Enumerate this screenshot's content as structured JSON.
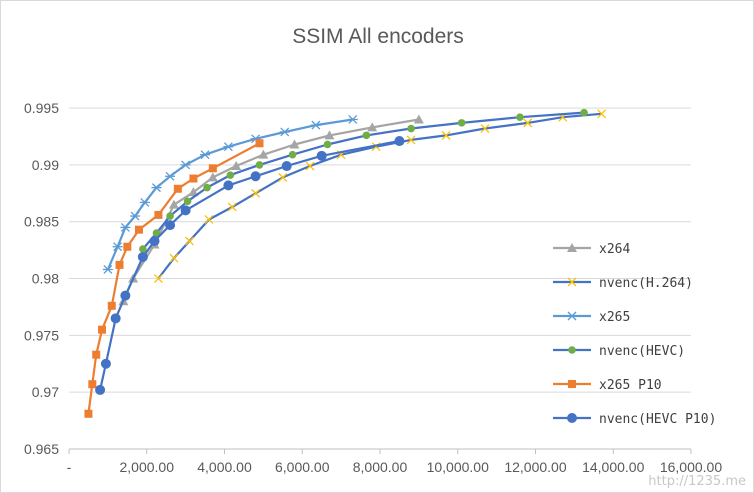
{
  "chart_data": {
    "type": "line",
    "title": "SSIM All encoders",
    "xlabel": "",
    "ylabel": "",
    "xlim": [
      0,
      16000
    ],
    "ylim": [
      0.965,
      0.998
    ],
    "xticks": [
      0,
      2000,
      4000,
      6000,
      8000,
      10000,
      12000,
      14000,
      16000
    ],
    "xtick_labels": [
      "-",
      "2,000.00",
      "4,000.00",
      "6,000.00",
      "8,000.00",
      "10,000.00",
      "12,000.00",
      "14,000.00",
      "16,000.00"
    ],
    "yticks": [
      0.965,
      0.97,
      0.975,
      0.98,
      0.985,
      0.99,
      0.995
    ],
    "ytick_labels": [
      "0.965",
      "0.97",
      "0.975",
      "0.98",
      "0.985",
      "0.99",
      "0.995"
    ],
    "grid": "horizontal",
    "legend_position": "right",
    "series": [
      {
        "name": "x264",
        "color": "#a5a5a5",
        "line_color": "#a5a5a5",
        "marker": "triangle",
        "x": [
          1400,
          1650,
          2200,
          2700,
          3200,
          3700,
          4300,
          5000,
          5800,
          6700,
          7800,
          9000
        ],
        "y": [
          0.978,
          0.98,
          0.983,
          0.9865,
          0.9876,
          0.9889,
          0.9899,
          0.9909,
          0.9918,
          0.9926,
          0.9933,
          0.994
        ]
      },
      {
        "name": "nvenc(H.264)",
        "color": "#ffc000",
        "line_color": "#4472c4",
        "marker": "x",
        "x": [
          2300,
          2700,
          3100,
          3600,
          4200,
          4800,
          5500,
          6200,
          7000,
          7900,
          8800,
          9700,
          10700,
          11800,
          12700,
          13700
        ],
        "y": [
          0.98,
          0.9818,
          0.9833,
          0.9852,
          0.9863,
          0.9875,
          0.9889,
          0.9899,
          0.9909,
          0.9916,
          0.9922,
          0.9926,
          0.9932,
          0.9937,
          0.9942,
          0.9945
        ]
      },
      {
        "name": "x265",
        "color": "#5b9bd5",
        "line_color": "#5b9bd5",
        "marker": "asterisk",
        "x": [
          1000,
          1250,
          1450,
          1700,
          1950,
          2250,
          2600,
          3000,
          3500,
          4100,
          4800,
          5550,
          6350,
          7300
        ],
        "y": [
          0.9808,
          0.9828,
          0.9845,
          0.9855,
          0.9867,
          0.988,
          0.989,
          0.99,
          0.9909,
          0.9916,
          0.9923,
          0.9929,
          0.9935,
          0.994
        ]
      },
      {
        "name": "nvenc(HEVC)",
        "color": "#70ad47",
        "line_color": "#4472c4",
        "marker": "circle-small",
        "x": [
          1900,
          2250,
          2600,
          3050,
          3550,
          4150,
          4900,
          5750,
          6650,
          7650,
          8800,
          10100,
          11600,
          13250
        ],
        "y": [
          0.9826,
          0.984,
          0.9855,
          0.9868,
          0.988,
          0.9891,
          0.99,
          0.9909,
          0.9918,
          0.9926,
          0.9932,
          0.9937,
          0.9942,
          0.9946
        ]
      },
      {
        "name": "x265 P10",
        "color": "#ed7d31",
        "line_color": "#ed7d31",
        "marker": "square",
        "x": [
          500,
          600,
          700,
          850,
          1100,
          1300,
          1500,
          1800,
          2300,
          2800,
          3200,
          3700,
          4900
        ],
        "y": [
          0.9681,
          0.9707,
          0.9733,
          0.9755,
          0.9776,
          0.9812,
          0.9828,
          0.9843,
          0.9856,
          0.9879,
          0.9888,
          0.9897,
          0.9919
        ]
      },
      {
        "name": "nvenc(HEVC P10)",
        "color": "#4472c4",
        "line_color": "#4472c4",
        "marker": "circle-large",
        "x": [
          800,
          950,
          1200,
          1450,
          1900,
          2200,
          2600,
          3000,
          4100,
          4800,
          5600,
          6500,
          8500
        ],
        "y": [
          0.9702,
          0.9725,
          0.9765,
          0.9785,
          0.9819,
          0.9833,
          0.9847,
          0.986,
          0.9882,
          0.989,
          0.9899,
          0.9908,
          0.9921
        ]
      }
    ]
  },
  "watermark": "http://1235.me"
}
